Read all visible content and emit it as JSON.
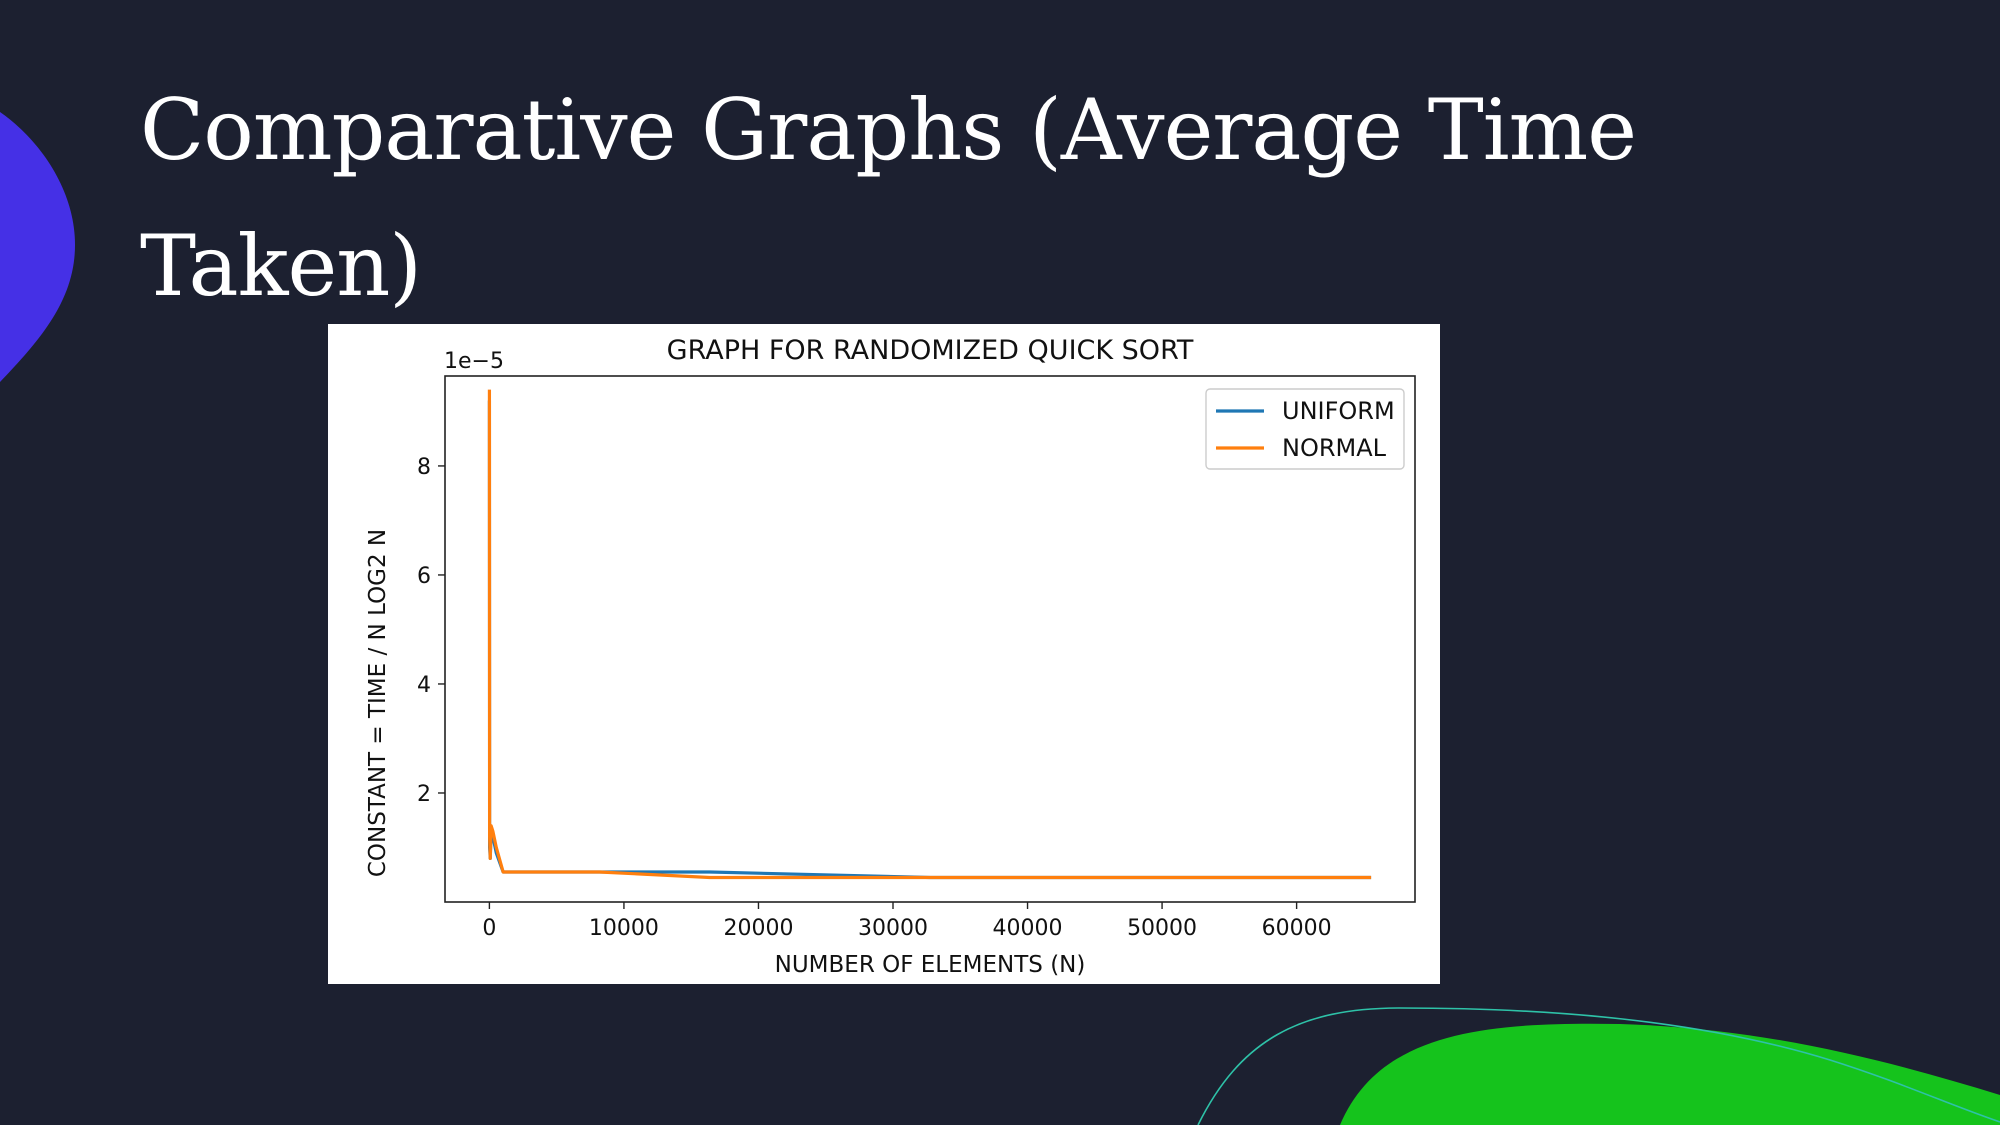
{
  "slide": {
    "title": "Comparative Graphs (Average Time Taken)",
    "background": "#1c2030",
    "accent_blue": "#4530e6",
    "accent_green": "#15c31c",
    "accent_teal": "#2ec2a8"
  },
  "chart_data": {
    "type": "line",
    "title": "GRAPH FOR RANDOMIZED QUICK SORT",
    "xlabel": "NUMBER OF ELEMENTS (N)",
    "ylabel": "CONSTANT = TIME / N LOG2 N",
    "y_offset_text": "1e−5",
    "xlim": [
      -3300,
      68800
    ],
    "ylim": [
      0.0,
      9.65
    ],
    "x_ticks": [
      0,
      10000,
      20000,
      30000,
      40000,
      50000,
      60000
    ],
    "y_ticks": [
      2,
      4,
      6,
      8
    ],
    "grid": false,
    "legend_position": "top-right",
    "series": [
      {
        "name": "UNIFORM",
        "color": "#1f77b4",
        "points": [
          [
            2,
            9.2
          ],
          [
            16,
            1.0
          ],
          [
            64,
            0.8
          ],
          [
            128,
            1.3
          ],
          [
            256,
            1.2
          ],
          [
            512,
            0.9
          ],
          [
            1024,
            0.55
          ],
          [
            2048,
            0.55
          ],
          [
            4096,
            0.55
          ],
          [
            8192,
            0.55
          ],
          [
            16384,
            0.55
          ],
          [
            32768,
            0.45
          ],
          [
            65536,
            0.45
          ]
        ]
      },
      {
        "name": "NORMAL",
        "color": "#ff7f0e",
        "points": [
          [
            2,
            9.4
          ],
          [
            16,
            1.2
          ],
          [
            64,
            0.8
          ],
          [
            128,
            1.4
          ],
          [
            256,
            1.3
          ],
          [
            512,
            1.0
          ],
          [
            1024,
            0.55
          ],
          [
            2048,
            0.55
          ],
          [
            4096,
            0.55
          ],
          [
            8192,
            0.55
          ],
          [
            16384,
            0.45
          ],
          [
            32768,
            0.45
          ],
          [
            65536,
            0.45
          ]
        ]
      }
    ]
  }
}
